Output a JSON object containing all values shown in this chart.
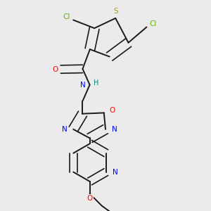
{
  "background_color": "#ebebeb",
  "bond_color": "#1a1a1a",
  "atom_colors": {
    "Cl": "#5db800",
    "S": "#b8a000",
    "O": "#ff0000",
    "N": "#0000ff",
    "H": "#008080"
  },
  "figsize": [
    3.0,
    3.0
  ],
  "dpi": 100
}
